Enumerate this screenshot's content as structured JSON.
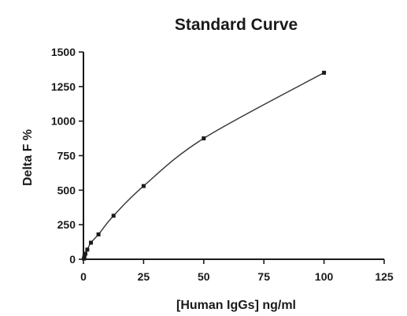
{
  "chart_data": {
    "type": "scatter",
    "title": "Standard Curve",
    "xlabel": "[Human IgGs] ng/ml",
    "ylabel": "Delta F %",
    "xlim": [
      0,
      125
    ],
    "ylim": [
      0,
      1500
    ],
    "x_ticks": [
      "0",
      "25",
      "50",
      "75",
      "100",
      "125"
    ],
    "y_ticks": [
      "0",
      "250",
      "500",
      "750",
      "1000",
      "1250",
      "1500"
    ],
    "grid": false,
    "fit_line": true,
    "series": [
      {
        "x": [
          0.2,
          0.4,
          0.8,
          1.6,
          3.1,
          6.25,
          12.5,
          25,
          50,
          100
        ],
        "y": [
          5,
          20,
          40,
          70,
          120,
          180,
          315,
          530,
          875,
          1350
        ]
      }
    ]
  }
}
